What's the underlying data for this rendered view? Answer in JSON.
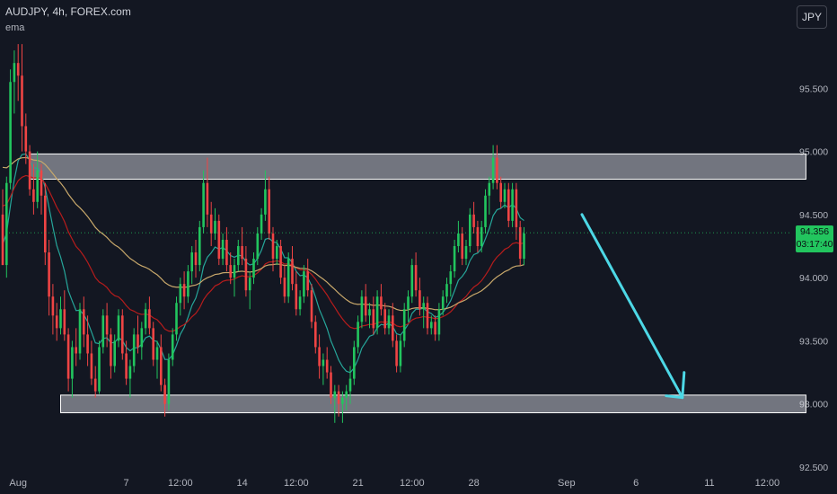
{
  "header": {
    "title": "AUDJPY, 4h, FOREX.com",
    "indicator": "ema"
  },
  "currency_button": "JPY",
  "price_tag": {
    "price": "94.356",
    "countdown": "03:17:40"
  },
  "colors": {
    "up": "#22c55e",
    "down": "#ef4444",
    "ema_fast": "#26a69a",
    "ema_mid": "#b71c1c",
    "ema_slow": "#c8a86b",
    "arrow": "#4dd8e6",
    "zone": "#d1d4dc"
  },
  "chart_data": {
    "type": "candlestick",
    "title": "AUDJPY, 4h, FOREX.com",
    "ylim": [
      92.5,
      96.0
    ],
    "y_ticks": [
      "95.500",
      "95.000",
      "94.500",
      "94.000",
      "93.500",
      "93.000",
      "92.500"
    ],
    "y_tick_values": [
      95.5,
      95.0,
      94.5,
      94.0,
      93.5,
      93.0,
      92.5
    ],
    "x_ticks": [
      "Aug",
      "7",
      "12:00",
      "14",
      "12:00",
      "21",
      "12:00",
      "28",
      "Sep",
      "6",
      "11",
      "12:00"
    ],
    "x_tick_index": [
      4,
      32,
      46,
      62,
      76,
      92,
      106,
      122,
      146,
      164,
      183,
      198
    ],
    "candles": [
      [
        94.5,
        94.7,
        94.1,
        94.1
      ],
      [
        94.1,
        94.8,
        94.0,
        94.75
      ],
      [
        94.75,
        95.65,
        94.7,
        95.55
      ],
      [
        95.55,
        95.8,
        95.3,
        95.7
      ],
      [
        95.7,
        95.85,
        95.4,
        95.6
      ],
      [
        95.6,
        95.85,
        95.0,
        95.2
      ],
      [
        95.2,
        95.3,
        94.9,
        95.0
      ],
      [
        95.0,
        95.05,
        94.65,
        94.7
      ],
      [
        94.7,
        94.9,
        94.5,
        94.6
      ],
      [
        94.6,
        95.0,
        94.55,
        94.85
      ],
      [
        94.85,
        94.9,
        94.5,
        94.65
      ],
      [
        94.65,
        94.75,
        94.1,
        94.2
      ],
      [
        94.2,
        94.3,
        93.7,
        93.85
      ],
      [
        93.85,
        93.95,
        93.55,
        93.7
      ],
      [
        93.7,
        93.8,
        93.5,
        93.6
      ],
      [
        93.6,
        93.85,
        93.55,
        93.75
      ],
      [
        93.75,
        93.9,
        93.5,
        93.55
      ],
      [
        93.55,
        93.6,
        93.1,
        93.2
      ],
      [
        93.2,
        93.5,
        93.05,
        93.45
      ],
      [
        93.45,
        93.6,
        93.3,
        93.4
      ],
      [
        93.4,
        93.8,
        93.35,
        93.75
      ],
      [
        93.75,
        93.85,
        93.45,
        93.55
      ],
      [
        93.55,
        93.7,
        93.3,
        93.4
      ],
      [
        93.4,
        93.5,
        93.15,
        93.2
      ],
      [
        93.2,
        93.3,
        93.05,
        93.1
      ],
      [
        93.1,
        93.5,
        93.08,
        93.45
      ],
      [
        93.45,
        93.75,
        93.4,
        93.7
      ],
      [
        93.7,
        93.8,
        93.45,
        93.55
      ],
      [
        93.55,
        93.6,
        93.2,
        93.3
      ],
      [
        93.3,
        93.55,
        93.25,
        93.5
      ],
      [
        93.5,
        93.75,
        93.45,
        93.7
      ],
      [
        93.7,
        93.75,
        93.35,
        93.4
      ],
      [
        93.4,
        93.5,
        93.15,
        93.2
      ],
      [
        93.2,
        93.35,
        93.05,
        93.3
      ],
      [
        93.3,
        93.6,
        93.25,
        93.55
      ],
      [
        93.55,
        93.7,
        93.4,
        93.45
      ],
      [
        93.45,
        93.65,
        93.35,
        93.6
      ],
      [
        93.6,
        93.8,
        93.55,
        93.75
      ],
      [
        93.75,
        93.85,
        93.55,
        93.6
      ],
      [
        93.6,
        93.65,
        93.3,
        93.35
      ],
      [
        93.35,
        93.5,
        93.2,
        93.45
      ],
      [
        93.45,
        93.55,
        93.1,
        93.15
      ],
      [
        93.15,
        93.2,
        92.9,
        93.0
      ],
      [
        93.0,
        93.4,
        92.95,
        93.35
      ],
      [
        93.35,
        93.6,
        93.3,
        93.55
      ],
      [
        93.55,
        93.85,
        93.5,
        93.8
      ],
      [
        93.8,
        94.0,
        93.7,
        93.95
      ],
      [
        93.95,
        94.05,
        93.75,
        93.85
      ],
      [
        93.85,
        94.1,
        93.8,
        94.05
      ],
      [
        94.05,
        94.25,
        93.95,
        94.2
      ],
      [
        94.2,
        94.3,
        94.0,
        94.1
      ],
      [
        94.1,
        94.45,
        94.05,
        94.4
      ],
      [
        94.4,
        94.85,
        94.35,
        94.75
      ],
      [
        94.75,
        94.95,
        94.4,
        94.5
      ],
      [
        94.5,
        94.6,
        94.25,
        94.35
      ],
      [
        94.35,
        94.55,
        94.3,
        94.45
      ],
      [
        94.45,
        94.5,
        94.1,
        94.15
      ],
      [
        94.15,
        94.35,
        94.1,
        94.3
      ],
      [
        94.3,
        94.4,
        94.05,
        94.1
      ],
      [
        94.1,
        94.2,
        93.95,
        94.0
      ],
      [
        94.0,
        94.15,
        93.85,
        94.1
      ],
      [
        94.1,
        94.3,
        94.05,
        94.25
      ],
      [
        94.25,
        94.4,
        94.1,
        94.15
      ],
      [
        94.15,
        94.25,
        93.85,
        93.9
      ],
      [
        93.9,
        94.05,
        93.75,
        94.0
      ],
      [
        94.0,
        94.2,
        93.95,
        94.15
      ],
      [
        94.15,
        94.4,
        94.1,
        94.35
      ],
      [
        94.35,
        94.55,
        94.3,
        94.5
      ],
      [
        94.5,
        94.85,
        94.45,
        94.7
      ],
      [
        94.7,
        94.8,
        94.3,
        94.35
      ],
      [
        94.35,
        94.4,
        94.05,
        94.15
      ],
      [
        94.15,
        94.3,
        94.1,
        94.25
      ],
      [
        94.25,
        94.3,
        93.95,
        94.0
      ],
      [
        94.0,
        94.1,
        93.8,
        93.85
      ],
      [
        93.85,
        94.2,
        93.8,
        94.15
      ],
      [
        94.15,
        94.25,
        93.9,
        93.95
      ],
      [
        93.95,
        94.05,
        93.7,
        93.75
      ],
      [
        93.75,
        93.9,
        93.7,
        93.85
      ],
      [
        93.85,
        94.1,
        93.8,
        94.05
      ],
      [
        94.05,
        94.15,
        93.85,
        93.9
      ],
      [
        93.9,
        93.95,
        93.6,
        93.65
      ],
      [
        93.65,
        93.7,
        93.4,
        93.45
      ],
      [
        93.45,
        93.55,
        93.2,
        93.3
      ],
      [
        93.3,
        93.4,
        93.15,
        93.35
      ],
      [
        93.35,
        93.45,
        93.2,
        93.25
      ],
      [
        93.25,
        93.3,
        93.0,
        93.05
      ],
      [
        93.05,
        93.15,
        92.85,
        93.1
      ],
      [
        93.1,
        93.15,
        92.9,
        93.0
      ],
      [
        93.0,
        93.1,
        92.85,
        93.05
      ],
      [
        93.05,
        93.15,
        92.95,
        93.1
      ],
      [
        93.1,
        93.3,
        93.0,
        93.2
      ],
      [
        93.2,
        93.5,
        93.15,
        93.45
      ],
      [
        93.45,
        93.7,
        93.4,
        93.65
      ],
      [
        93.65,
        93.9,
        93.6,
        93.85
      ],
      [
        93.85,
        93.95,
        93.65,
        93.7
      ],
      [
        93.7,
        93.8,
        93.6,
        93.75
      ],
      [
        93.75,
        93.85,
        93.55,
        93.6
      ],
      [
        93.6,
        93.9,
        93.55,
        93.85
      ],
      [
        93.85,
        93.95,
        93.7,
        93.75
      ],
      [
        93.75,
        93.8,
        93.55,
        93.6
      ],
      [
        93.6,
        93.75,
        93.55,
        93.7
      ],
      [
        93.7,
        93.8,
        93.45,
        93.5
      ],
      [
        93.5,
        93.55,
        93.25,
        93.3
      ],
      [
        93.3,
        93.55,
        93.25,
        93.5
      ],
      [
        93.5,
        93.8,
        93.45,
        93.75
      ],
      [
        93.75,
        93.9,
        93.65,
        93.85
      ],
      [
        93.85,
        94.15,
        93.8,
        94.1
      ],
      [
        94.1,
        94.2,
        93.85,
        93.9
      ],
      [
        93.9,
        94.0,
        93.7,
        93.75
      ],
      [
        93.75,
        93.85,
        93.6,
        93.8
      ],
      [
        93.8,
        93.85,
        93.55,
        93.6
      ],
      [
        93.6,
        93.7,
        93.55,
        93.65
      ],
      [
        93.65,
        93.7,
        93.5,
        93.55
      ],
      [
        93.55,
        93.8,
        93.5,
        93.75
      ],
      [
        93.75,
        93.9,
        93.7,
        93.85
      ],
      [
        93.85,
        94.0,
        93.8,
        93.95
      ],
      [
        93.95,
        94.1,
        93.85,
        94.05
      ],
      [
        94.05,
        94.3,
        94.0,
        94.25
      ],
      [
        94.25,
        94.45,
        94.2,
        94.35
      ],
      [
        94.35,
        94.4,
        94.1,
        94.15
      ],
      [
        94.15,
        94.3,
        94.1,
        94.25
      ],
      [
        94.25,
        94.55,
        94.2,
        94.5
      ],
      [
        94.5,
        94.6,
        94.35,
        94.4
      ],
      [
        94.4,
        94.45,
        94.2,
        94.25
      ],
      [
        94.25,
        94.45,
        94.2,
        94.4
      ],
      [
        94.4,
        94.7,
        94.35,
        94.65
      ],
      [
        94.65,
        94.8,
        94.5,
        94.75
      ],
      [
        94.75,
        95.05,
        94.7,
        94.95
      ],
      [
        94.95,
        95.05,
        94.7,
        94.75
      ],
      [
        94.75,
        94.8,
        94.55,
        94.6
      ],
      [
        94.6,
        94.75,
        94.55,
        94.7
      ],
      [
        94.7,
        94.75,
        94.4,
        94.45
      ],
      [
        94.45,
        94.75,
        94.4,
        94.7
      ],
      [
        94.7,
        94.75,
        94.3,
        94.4
      ],
      [
        94.4,
        94.45,
        94.1,
        94.15
      ],
      [
        94.15,
        94.4,
        94.1,
        94.35
      ]
    ],
    "horizontal_zones": [
      {
        "from_index": 7,
        "to_index": 208,
        "y_low": 94.78,
        "y_high": 94.98
      },
      {
        "from_index": 15,
        "to_index": 208,
        "y_low": 92.93,
        "y_high": 93.07
      }
    ],
    "current_price": 94.356,
    "arrow": {
      "from": {
        "index": 150,
        "price": 94.5
      },
      "to": {
        "index": 176,
        "price": 93.05
      }
    }
  }
}
